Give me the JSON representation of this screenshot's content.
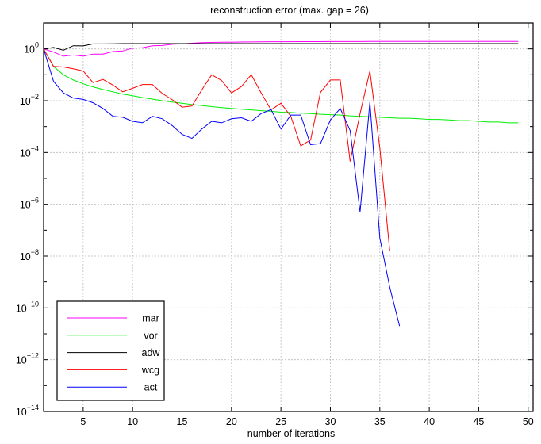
{
  "chart_data": {
    "type": "line",
    "title": "reconstruction error (max. gap = 26)",
    "xlabel": "number of iterations",
    "ylabel": "",
    "xlim": [
      1,
      50.5
    ],
    "ylim": [
      1e-14,
      10
    ],
    "yscale": "log",
    "grid": true,
    "legend_position": "bottom-left",
    "xticks": [
      5,
      10,
      15,
      20,
      25,
      30,
      35,
      40,
      45,
      50
    ],
    "yticks": [
      {
        "value": 1,
        "base": "10",
        "exp": "0"
      },
      {
        "value": 0.01,
        "base": "10",
        "exp": "−2"
      },
      {
        "value": 0.0001,
        "base": "10",
        "exp": "−4"
      },
      {
        "value": 1e-06,
        "base": "10",
        "exp": "−6"
      },
      {
        "value": 1e-08,
        "base": "10",
        "exp": "−8"
      },
      {
        "value": 1e-10,
        "base": "10",
        "exp": "−10"
      },
      {
        "value": 1e-12,
        "base": "10",
        "exp": "−12"
      },
      {
        "value": 1e-14,
        "base": "10",
        "exp": "−14"
      }
    ],
    "series": [
      {
        "name": "mar",
        "color": "#ff00ff",
        "values": [
          1,
          0.76,
          0.52,
          0.58,
          0.52,
          0.63,
          0.63,
          0.79,
          0.83,
          1.07,
          1.1,
          1.32,
          1.35,
          1.5,
          1.58,
          1.66,
          1.74,
          1.78,
          1.8,
          1.82,
          1.84,
          1.86,
          1.88,
          1.9,
          1.9,
          1.9,
          1.91,
          1.91,
          1.91,
          1.92,
          1.92,
          1.92,
          1.92,
          1.93,
          1.93,
          1.93,
          1.93,
          1.93,
          1.94,
          1.94,
          1.94,
          1.94,
          1.94,
          1.94,
          1.95,
          1.95,
          1.95,
          1.95,
          1.95
        ]
      },
      {
        "name": "vor",
        "color": "#00ee00",
        "values": [
          1,
          0.21,
          0.1,
          0.063,
          0.045,
          0.034,
          0.027,
          0.022,
          0.018,
          0.0155,
          0.0132,
          0.0115,
          0.01,
          0.0089,
          0.0079,
          0.0071,
          0.0065,
          0.0059,
          0.0054,
          0.005,
          0.0047,
          0.0044,
          0.0041,
          0.0039,
          0.0036,
          0.0035,
          0.0033,
          0.0032,
          0.003,
          0.0029,
          0.0028,
          0.0026,
          0.0025,
          0.0024,
          0.0023,
          0.0022,
          0.0021,
          0.0021,
          0.002,
          0.0019,
          0.0019,
          0.0018,
          0.0017,
          0.0017,
          0.0016,
          0.0015,
          0.0015,
          0.0014,
          0.0014
        ]
      },
      {
        "name": "adw",
        "color": "#000000",
        "values": [
          1,
          1.13,
          0.89,
          1.32,
          1.3,
          1.55,
          1.55,
          1.58,
          1.6,
          1.6,
          1.6,
          1.6,
          1.6,
          1.6,
          1.6,
          1.6,
          1.6,
          1.6,
          1.6,
          1.6,
          1.6,
          1.6,
          1.6,
          1.6,
          1.6,
          1.6,
          1.6,
          1.6,
          1.6,
          1.6,
          1.6,
          1.6,
          1.6,
          1.6,
          1.6,
          1.6,
          1.6,
          1.6,
          1.6,
          1.6,
          1.6,
          1.6,
          1.6,
          1.6,
          1.6,
          1.6,
          1.6,
          1.6,
          1.6
        ]
      },
      {
        "name": "wcg",
        "color": "#ff0000",
        "values": [
          1,
          0.21,
          0.2,
          0.17,
          0.14,
          0.05,
          0.066,
          0.04,
          0.022,
          0.03,
          0.042,
          0.042,
          0.019,
          0.011,
          0.0056,
          0.0063,
          0.026,
          0.1,
          0.06,
          0.02,
          0.035,
          0.1,
          0.02,
          0.0044,
          0.008,
          0.0025,
          0.00018,
          0.0003,
          0.021,
          0.063,
          0.063,
          4.5e-05,
          0.0032,
          0.14,
          0.00015,
          1.6e-08
        ]
      },
      {
        "name": "act",
        "color": "#0000ff",
        "values": [
          1,
          0.056,
          0.02,
          0.0126,
          0.0112,
          0.0083,
          0.005,
          0.0025,
          0.0023,
          0.0016,
          0.0014,
          0.0025,
          0.002,
          0.0011,
          0.0005,
          0.00035,
          0.0008,
          0.0016,
          0.0014,
          0.002,
          0.0022,
          0.0016,
          0.0032,
          0.0045,
          0.0008,
          0.0028,
          0.0028,
          0.0002,
          0.00022,
          0.0018,
          0.005,
          0.0007,
          5e-07,
          0.0089,
          5e-08,
          6.3e-10,
          2e-11
        ]
      }
    ]
  }
}
